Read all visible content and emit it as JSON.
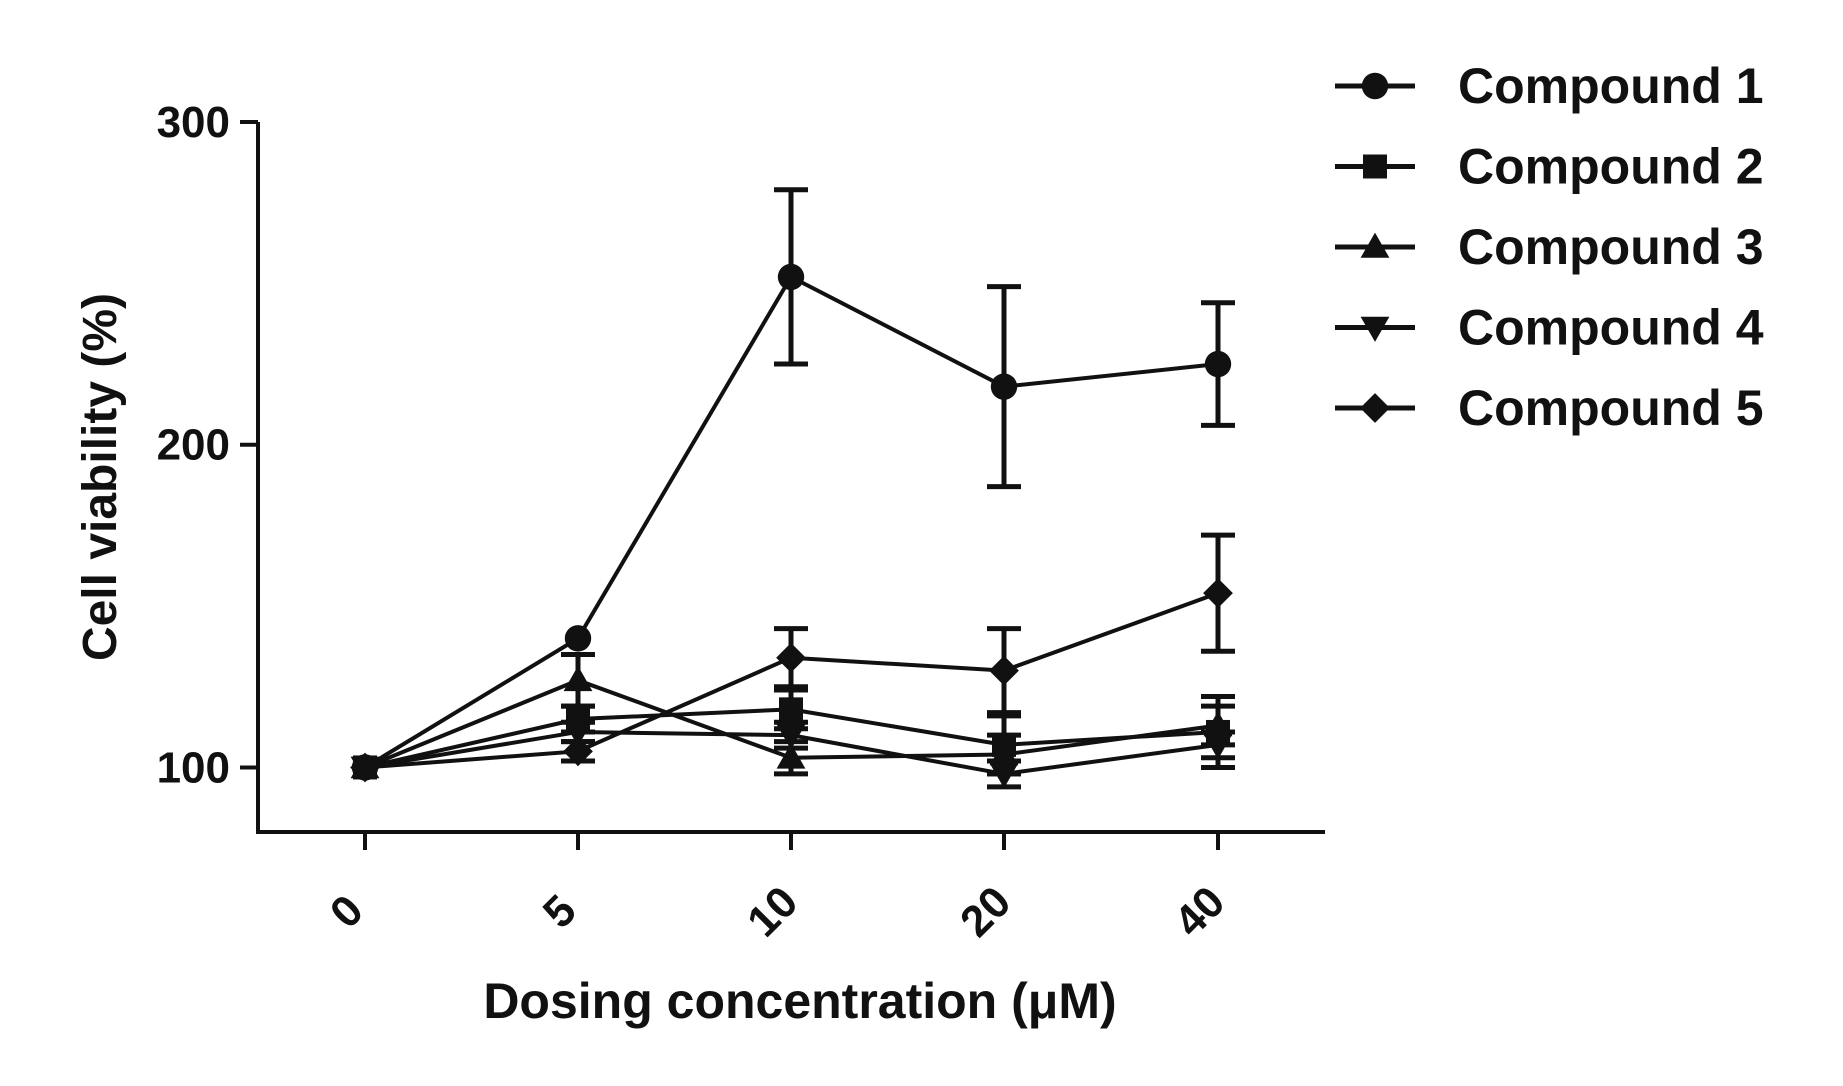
{
  "chart_data": {
    "type": "line",
    "title": "",
    "xlabel": "Dosing concentration (μM)",
    "ylabel": "Cell viability (%)",
    "categories": [
      "0",
      "5",
      "10",
      "20",
      "40"
    ],
    "ylim": [
      80,
      300
    ],
    "yticks": [
      100,
      200,
      300
    ],
    "legend_position": "top-right",
    "color": "#111111",
    "series": [
      {
        "name": "Compound 1",
        "marker": "circle",
        "values": [
          100,
          140,
          252,
          218,
          225
        ],
        "errors": [
          0,
          0,
          27,
          31,
          19
        ]
      },
      {
        "name": "Compound 2",
        "marker": "square",
        "values": [
          100,
          115,
          118,
          107,
          111
        ],
        "errors": [
          0,
          4,
          6,
          9,
          11
        ]
      },
      {
        "name": "Compound 3",
        "marker": "triangle-up",
        "values": [
          100,
          127,
          103,
          104,
          113
        ],
        "errors": [
          0,
          8,
          5,
          6,
          6
        ]
      },
      {
        "name": "Compound 4",
        "marker": "triangle-down",
        "values": [
          100,
          111,
          110,
          98,
          107
        ],
        "errors": [
          0,
          3,
          4,
          4,
          4
        ]
      },
      {
        "name": "Compound 5",
        "marker": "diamond",
        "values": [
          100,
          105,
          134,
          130,
          154
        ],
        "errors": [
          0,
          3,
          9,
          13,
          18
        ]
      }
    ]
  }
}
